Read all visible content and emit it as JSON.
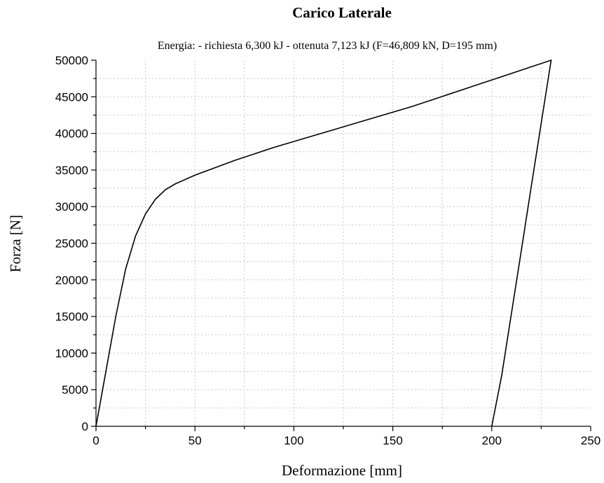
{
  "chart_data": {
    "type": "line",
    "title": "Carico Laterale",
    "subtitle": "Energia: - richiesta 6,300 kJ - ottenuta 7,123 kJ (F=46,809 kN, D=195 mm)",
    "xlabel": "Deformazione [mm]",
    "ylabel": "Forza [N]",
    "xlim": [
      0,
      250
    ],
    "ylim": [
      0,
      50000
    ],
    "xticks": [
      0,
      50,
      100,
      150,
      200,
      250
    ],
    "yticks": [
      0,
      5000,
      10000,
      15000,
      20000,
      25000,
      30000,
      35000,
      40000,
      45000,
      50000
    ],
    "xtick_labels": [
      "0",
      "50",
      "100",
      "150",
      "200",
      "250"
    ],
    "ytick_labels": [
      "0",
      "5000",
      "10000",
      "15000",
      "20000",
      "25000",
      "30000",
      "35000",
      "40000",
      "45000",
      "50000"
    ],
    "grid": true,
    "series": [
      {
        "color": "#000000",
        "x": [
          0,
          5,
          10,
          15,
          20,
          25,
          30,
          35,
          40,
          50,
          60,
          70,
          80,
          90,
          100,
          110,
          120,
          130,
          140,
          150,
          160,
          170,
          180,
          190,
          200,
          210,
          220,
          230,
          225,
          220,
          215,
          210,
          205,
          200
        ],
        "y": [
          0,
          7500,
          15000,
          21500,
          26000,
          29000,
          31000,
          32300,
          33100,
          34300,
          35300,
          36300,
          37200,
          38100,
          38900,
          39700,
          40500,
          41300,
          42100,
          42900,
          43700,
          44600,
          45500,
          46400,
          47300,
          48200,
          49100,
          50000,
          41400,
          32800,
          24100,
          15500,
          6900,
          0
        ]
      }
    ]
  }
}
